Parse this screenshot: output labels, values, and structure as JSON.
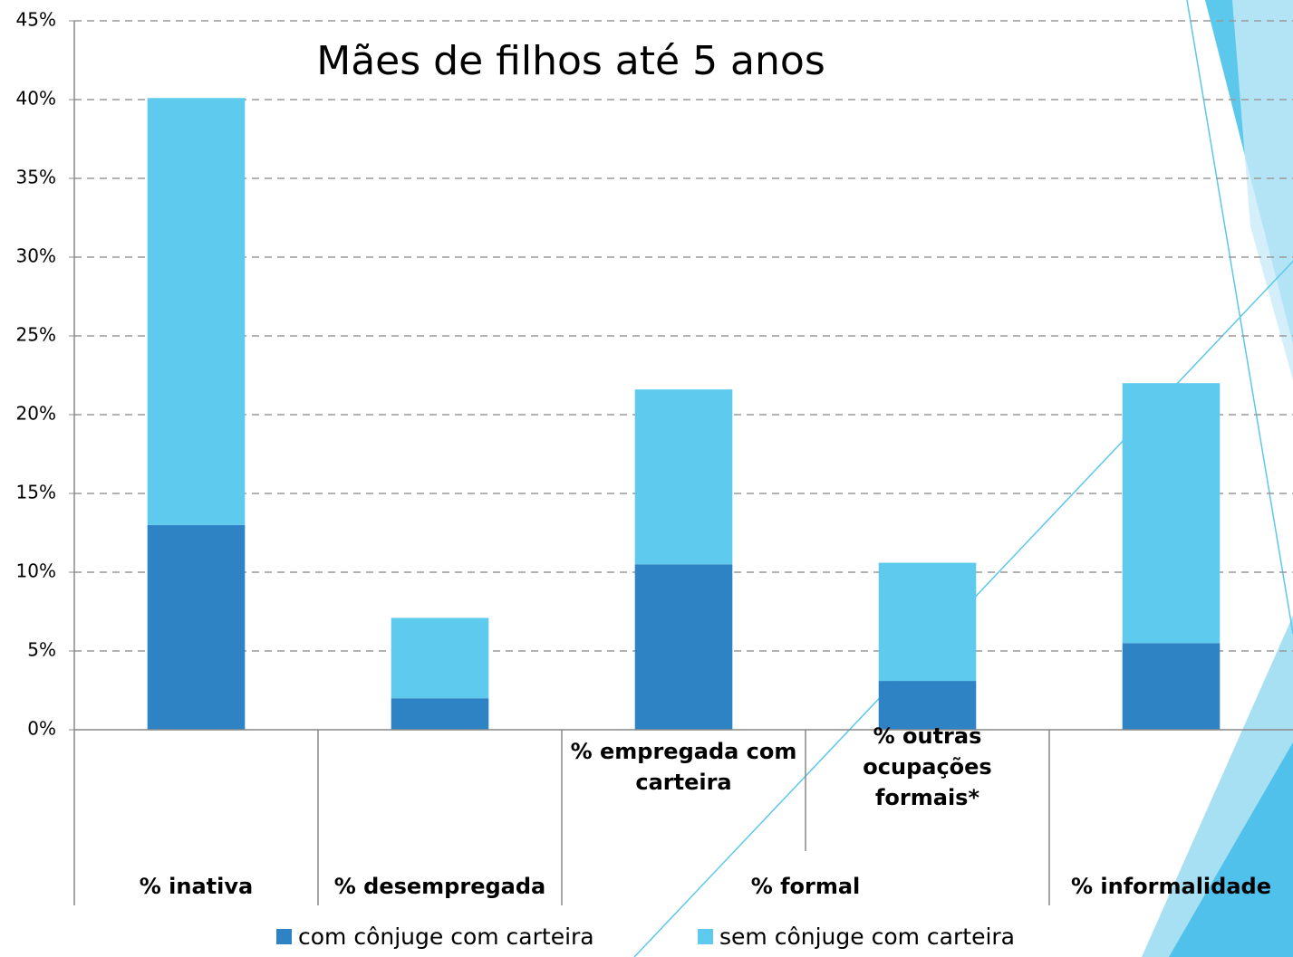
{
  "chart_data": {
    "type": "stacked-bar",
    "title": "Mães de filhos até 5 anos",
    "categories": [
      null,
      null,
      "% empregada com carteira",
      "% outras ocupações formais*",
      null
    ],
    "groups": [
      {
        "label": "% inativa",
        "span": 1
      },
      {
        "label": "% desempregada",
        "span": 1
      },
      {
        "label": "% formal",
        "span": 2
      },
      {
        "label": "% informalidade",
        "span": 1
      }
    ],
    "series": [
      {
        "name": "com cônjuge com carteira",
        "color": "#2e83c4",
        "values": [
          13,
          2,
          10.5,
          3.1,
          5.5
        ]
      },
      {
        "name": "sem cônjuge com carteira",
        "color": "#5ecbee",
        "values": [
          27.1,
          5.1,
          11.1,
          7.5,
          16.5
        ]
      }
    ],
    "ylim": [
      0,
      45
    ],
    "yticks": [
      {
        "value": 0,
        "label": "0%"
      },
      {
        "value": 5,
        "label": "5%"
      },
      {
        "value": 10,
        "label": "10%"
      },
      {
        "value": 15,
        "label": "15%"
      },
      {
        "value": 20,
        "label": "20%"
      },
      {
        "value": 25,
        "label": "25%"
      },
      {
        "value": 30,
        "label": "30%"
      },
      {
        "value": 35,
        "label": "35%"
      },
      {
        "value": 40,
        "label": "40%"
      },
      {
        "value": 45,
        "label": "45%"
      }
    ],
    "grid": true
  }
}
